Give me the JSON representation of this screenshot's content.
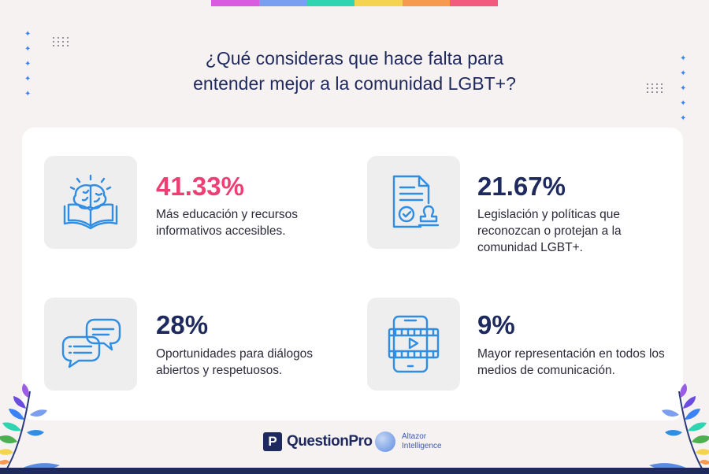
{
  "colors": {
    "rainbow": [
      "#d85be0",
      "#7b9ff0",
      "#2fd4b0",
      "#f4d350",
      "#f59a4e",
      "#f25b7e"
    ],
    "title": "#1e2a5e",
    "accent_pink": "#ee3f74",
    "accent_navy": "#1e2a5e",
    "icon_blue": "#2f8de4"
  },
  "title": {
    "line1": "¿Qué consideras que hace falta para",
    "line2": "entender mejor a la comunidad LGBT+?"
  },
  "items": [
    {
      "stat": "41.33%",
      "description": "Más educación y recursos informativos accesibles.",
      "icon": "brain-book-icon",
      "highlight": true
    },
    {
      "stat": "21.67%",
      "description": "Legislación y políticas que reconozcan o protejan a la comunidad LGBT+.",
      "icon": "document-stamp-icon",
      "highlight": false
    },
    {
      "stat": "28%",
      "description": "Oportunidades para diálogos abiertos y respetuosos.",
      "icon": "chat-bubbles-icon",
      "highlight": false
    },
    {
      "stat": "9%",
      "description": "Mayor representación en todos los medios de comunicación.",
      "icon": "phone-video-icon",
      "highlight": false
    }
  ],
  "footer": {
    "questionpro_mark": "P",
    "questionpro": "QuestionPro",
    "altazor_line1": "Altazor",
    "altazor_line2": "Intelligence"
  }
}
